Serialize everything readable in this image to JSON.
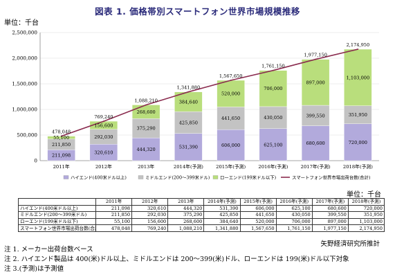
{
  "title": "図表 1. 価格帯別スマートフォン世界市場規模推移",
  "unit_label": "単位：千台",
  "table_unit_label": "単位：千台",
  "source_label": "矢野経済研究所推計",
  "notes": [
    "注 1. メーカー出荷台数ベース",
    "注 2. ハイエンド製品は 400(米)ドル以上、ミドルエンドは 200～399(米)ドル、ローエンドは 199(米)ドル以下対象",
    "注 3.(予測)は予測値"
  ],
  "colors": {
    "high": "#b2aadc",
    "mid": "#c3c3c3",
    "low": "#b9de7c",
    "total_line": "#8a2b4e"
  },
  "chart_data": {
    "type": "bar",
    "stacked": true,
    "categories": [
      "2011年",
      "2012年",
      "2013年",
      "2014年(予測)",
      "2015年(予測)",
      "2016年(予測)",
      "2017年(予測)",
      "2018年(予測)"
    ],
    "series": [
      {
        "name": "ハイエンド(400米ドル以上)",
        "values": [
          211098,
          320610,
          444320,
          531390,
          606000,
          625100,
          680600,
          720000
        ]
      },
      {
        "name": "ミドルエンド(200～399米ドル)",
        "values": [
          211850,
          292030,
          375290,
          425850,
          441650,
          430050,
          399550,
          351950
        ]
      },
      {
        "name": "ローエンド(199米ドル以下)",
        "values": [
          55100,
          156600,
          268600,
          384640,
          520000,
          706000,
          897000,
          1103000
        ]
      },
      {
        "name": "スマートフォン世界市場出荷台数(合計)",
        "type": "line",
        "values": [
          478048,
          769240,
          1088210,
          1341880,
          1567650,
          1761150,
          1977150,
          2174950
        ]
      }
    ],
    "y_ticks": [
      "0",
      "500,000",
      "1,000,000",
      "1,500,000",
      "2,000,000",
      "2,500,000"
    ],
    "ylim": [
      0,
      2500000
    ],
    "xlabel": "",
    "ylabel": "",
    "legend_position": "bottom",
    "table": {
      "headers": [
        "",
        "2011年",
        "2012年",
        "2013年",
        "2014年(予測)",
        "2015年(予測)",
        "2016年(予測)",
        "2017年(予測)",
        "2018年(予測)"
      ],
      "rows": [
        {
          "label": "ハイエンド(400米ドル以上)",
          "values": [
            "211,098",
            "320,610",
            "444,320",
            "531,390",
            "606,000",
            "625,100",
            "680,600",
            "720,000"
          ]
        },
        {
          "label": "ミドルエンド(200～399米ドル)",
          "values": [
            "211,850",
            "292,030",
            "375,290",
            "425,850",
            "441,650",
            "430,050",
            "399,550",
            "351,950"
          ]
        },
        {
          "label": "ローエンド(199米ドル以下)",
          "values": [
            "55,100",
            "156,600",
            "268,600",
            "384,640",
            "520,000",
            "706,000",
            "897,000",
            "1,103,000"
          ]
        },
        {
          "label": "スマートフォン世界市場出荷台数(合計)",
          "values": [
            "478,048",
            "769,240",
            "1,088,210",
            "1,341,880",
            "1,567,650",
            "1,761,150",
            "1,977,150",
            "2,174,950"
          ]
        }
      ]
    }
  }
}
